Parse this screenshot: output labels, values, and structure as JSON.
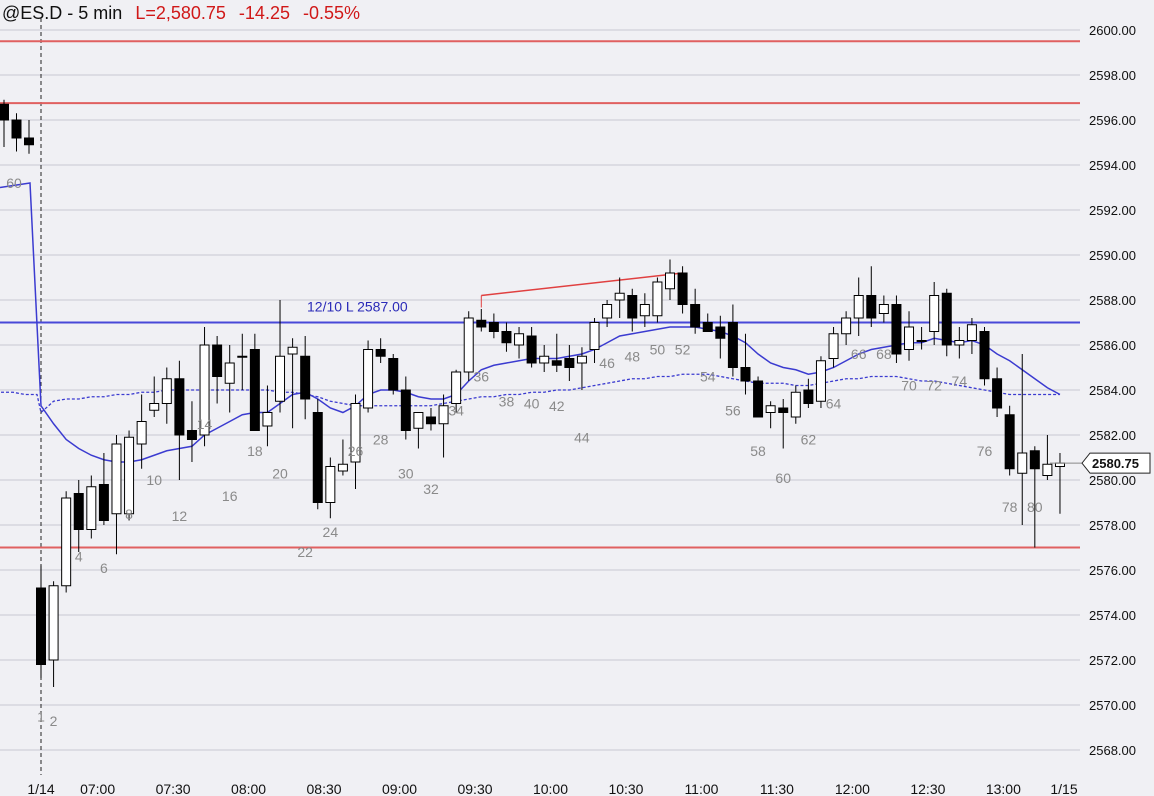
{
  "header": {
    "symbol": "@ES.D - 5 min",
    "last": "L=2,580.75",
    "change": "-14.25",
    "percent": "-0.55%"
  },
  "chart_data": {
    "type": "candlestick",
    "ylim": [
      2567,
      2601
    ],
    "yticks": [
      "2600.00",
      "2598.00",
      "2596.00",
      "2594.00",
      "2592.00",
      "2590.00",
      "2588.00",
      "2586.00",
      "2584.00",
      "2582.00",
      "2580.00",
      "2578.00",
      "2576.00",
      "2574.00",
      "2572.00",
      "2570.00",
      "2568.00"
    ],
    "xticks": [
      "1/14",
      "07:00",
      "07:30",
      "08:00",
      "08:30",
      "09:00",
      "09:30",
      "10:00",
      "10:30",
      "11:00",
      "11:30",
      "12:00",
      "12:30",
      "13:00",
      "1/15"
    ],
    "last_price_label": "2580.75",
    "last_price": 2580.75,
    "session_divider_label": "1/14",
    "colors": {
      "background": "#f0f0f4",
      "grid": "#c9c9d2",
      "level": "#e06060",
      "ema": "#3b3bd0",
      "bull": "#ffffff",
      "bear": "#000000",
      "text_gray": "#8a8a8a",
      "text_red": "#c01818",
      "text_blue": "#1e88e5"
    },
    "red_levels": [
      2599.5,
      2596.75,
      2577.0
    ],
    "blue_level": {
      "value": 2587.0,
      "label": "12/10 L 2587.00"
    },
    "trendline": {
      "from_bar": 36,
      "y1": 2588.2,
      "to_bar": 52,
      "y2": 2589.2
    },
    "prev_bars": [
      {
        "o": 2596.7,
        "h": 2596.9,
        "l": 2594.8,
        "c": 2596.0
      },
      {
        "o": 2596.0,
        "h": 2596.3,
        "l": 2594.6,
        "c": 2595.2
      },
      {
        "o": 2595.2,
        "h": 2596.0,
        "l": 2594.5,
        "c": 2594.9
      }
    ],
    "bars": [
      {
        "o": 2575.2,
        "h": 2576.2,
        "l": 2571.2,
        "c": 2571.8
      },
      {
        "o": 2572.0,
        "h": 2575.5,
        "l": 2570.8,
        "c": 2575.3
      },
      {
        "o": 2575.3,
        "h": 2579.5,
        "l": 2575.0,
        "c": 2579.2
      },
      {
        "o": 2579.4,
        "h": 2580.0,
        "l": 2576.8,
        "c": 2577.8
      },
      {
        "o": 2577.8,
        "h": 2580.2,
        "l": 2577.4,
        "c": 2579.7
      },
      {
        "o": 2579.8,
        "h": 2581.2,
        "l": 2578.0,
        "c": 2578.2
      },
      {
        "o": 2578.5,
        "h": 2582.0,
        "l": 2576.7,
        "c": 2581.6
      },
      {
        "o": 2578.5,
        "h": 2582.2,
        "l": 2578.2,
        "c": 2581.9
      },
      {
        "o": 2581.6,
        "h": 2583.8,
        "l": 2580.5,
        "c": 2582.6
      },
      {
        "o": 2583.1,
        "h": 2584.6,
        "l": 2582.8,
        "c": 2583.4
      },
      {
        "o": 2583.4,
        "h": 2585.0,
        "l": 2582.5,
        "c": 2584.5
      },
      {
        "o": 2584.5,
        "h": 2585.3,
        "l": 2580.0,
        "c": 2582.0
      },
      {
        "o": 2582.2,
        "h": 2583.5,
        "l": 2580.8,
        "c": 2581.8
      },
      {
        "o": 2582.0,
        "h": 2586.8,
        "l": 2581.5,
        "c": 2586.0
      },
      {
        "o": 2586.0,
        "h": 2586.4,
        "l": 2583.4,
        "c": 2584.6
      },
      {
        "o": 2584.3,
        "h": 2586.0,
        "l": 2583.0,
        "c": 2585.2
      },
      {
        "o": 2585.5,
        "h": 2586.5,
        "l": 2584.0,
        "c": 2585.5
      },
      {
        "o": 2585.8,
        "h": 2586.5,
        "l": 2582.2,
        "c": 2582.2
      },
      {
        "o": 2582.4,
        "h": 2584.2,
        "l": 2581.5,
        "c": 2583.0
      },
      {
        "o": 2583.5,
        "h": 2588.0,
        "l": 2583.0,
        "c": 2585.5
      },
      {
        "o": 2585.6,
        "h": 2586.3,
        "l": 2582.3,
        "c": 2585.9
      },
      {
        "o": 2585.5,
        "h": 2586.4,
        "l": 2582.7,
        "c": 2583.6
      },
      {
        "o": 2583.0,
        "h": 2583.6,
        "l": 2578.7,
        "c": 2579.0
      },
      {
        "o": 2579.0,
        "h": 2581.0,
        "l": 2578.3,
        "c": 2580.6
      },
      {
        "o": 2580.4,
        "h": 2581.8,
        "l": 2580.2,
        "c": 2580.7
      },
      {
        "o": 2580.8,
        "h": 2583.8,
        "l": 2579.6,
        "c": 2583.4
      },
      {
        "o": 2583.2,
        "h": 2586.2,
        "l": 2583.0,
        "c": 2585.8
      },
      {
        "o": 2585.8,
        "h": 2586.3,
        "l": 2585.2,
        "c": 2585.5
      },
      {
        "o": 2585.4,
        "h": 2585.6,
        "l": 2583.8,
        "c": 2584.0
      },
      {
        "o": 2584.0,
        "h": 2584.6,
        "l": 2581.8,
        "c": 2582.2
      },
      {
        "o": 2582.3,
        "h": 2583.0,
        "l": 2581.4,
        "c": 2583.0
      },
      {
        "o": 2582.8,
        "h": 2583.2,
        "l": 2582.2,
        "c": 2582.5
      },
      {
        "o": 2582.5,
        "h": 2583.8,
        "l": 2581.0,
        "c": 2583.3
      },
      {
        "o": 2583.4,
        "h": 2584.9,
        "l": 2583.0,
        "c": 2584.8
      },
      {
        "o": 2584.8,
        "h": 2587.5,
        "l": 2584.4,
        "c": 2587.2
      },
      {
        "o": 2587.1,
        "h": 2587.6,
        "l": 2586.6,
        "c": 2586.8
      },
      {
        "o": 2587.0,
        "h": 2587.4,
        "l": 2586.3,
        "c": 2586.6
      },
      {
        "o": 2586.6,
        "h": 2587.0,
        "l": 2585.7,
        "c": 2586.1
      },
      {
        "o": 2586.0,
        "h": 2586.8,
        "l": 2585.4,
        "c": 2586.5
      },
      {
        "o": 2586.4,
        "h": 2586.8,
        "l": 2585.0,
        "c": 2585.2
      },
      {
        "o": 2585.2,
        "h": 2586.0,
        "l": 2584.8,
        "c": 2585.5
      },
      {
        "o": 2585.3,
        "h": 2586.5,
        "l": 2584.8,
        "c": 2585.1
      },
      {
        "o": 2585.4,
        "h": 2586.0,
        "l": 2584.4,
        "c": 2585.0
      },
      {
        "o": 2585.2,
        "h": 2585.9,
        "l": 2584.0,
        "c": 2585.5
      },
      {
        "o": 2585.8,
        "h": 2587.2,
        "l": 2585.2,
        "c": 2587.0
      },
      {
        "o": 2587.2,
        "h": 2588.0,
        "l": 2586.8,
        "c": 2587.8
      },
      {
        "o": 2588.0,
        "h": 2589.0,
        "l": 2587.2,
        "c": 2588.3
      },
      {
        "o": 2588.2,
        "h": 2588.5,
        "l": 2586.6,
        "c": 2587.2
      },
      {
        "o": 2587.3,
        "h": 2588.3,
        "l": 2586.8,
        "c": 2587.8
      },
      {
        "o": 2587.3,
        "h": 2589.0,
        "l": 2587.0,
        "c": 2588.8
      },
      {
        "o": 2588.5,
        "h": 2589.8,
        "l": 2588.0,
        "c": 2589.2
      },
      {
        "o": 2589.2,
        "h": 2589.5,
        "l": 2587.4,
        "c": 2587.8
      },
      {
        "o": 2587.8,
        "h": 2588.5,
        "l": 2586.5,
        "c": 2586.8
      },
      {
        "o": 2587.0,
        "h": 2587.4,
        "l": 2586.6,
        "c": 2586.6
      },
      {
        "o": 2586.8,
        "h": 2587.3,
        "l": 2585.4,
        "c": 2586.3
      },
      {
        "o": 2587.0,
        "h": 2587.8,
        "l": 2584.6,
        "c": 2585.0
      },
      {
        "o": 2585.0,
        "h": 2586.5,
        "l": 2583.8,
        "c": 2584.4
      },
      {
        "o": 2584.4,
        "h": 2584.6,
        "l": 2582.8,
        "c": 2582.8
      },
      {
        "o": 2583.0,
        "h": 2583.5,
        "l": 2582.3,
        "c": 2583.3
      },
      {
        "o": 2583.2,
        "h": 2583.6,
        "l": 2581.4,
        "c": 2583.0
      },
      {
        "o": 2582.8,
        "h": 2584.2,
        "l": 2582.5,
        "c": 2583.9
      },
      {
        "o": 2584.0,
        "h": 2584.5,
        "l": 2583.2,
        "c": 2583.4
      },
      {
        "o": 2583.5,
        "h": 2585.5,
        "l": 2583.2,
        "c": 2585.3
      },
      {
        "o": 2585.4,
        "h": 2586.8,
        "l": 2585.0,
        "c": 2586.5
      },
      {
        "o": 2586.5,
        "h": 2587.5,
        "l": 2586.0,
        "c": 2587.2
      },
      {
        "o": 2587.2,
        "h": 2589.0,
        "l": 2586.4,
        "c": 2588.2
      },
      {
        "o": 2588.2,
        "h": 2589.5,
        "l": 2586.8,
        "c": 2587.2
      },
      {
        "o": 2587.4,
        "h": 2588.2,
        "l": 2587.0,
        "c": 2587.8
      },
      {
        "o": 2587.8,
        "h": 2588.2,
        "l": 2585.2,
        "c": 2585.6
      },
      {
        "o": 2585.8,
        "h": 2587.5,
        "l": 2585.3,
        "c": 2586.8
      },
      {
        "o": 2586.2,
        "h": 2586.8,
        "l": 2585.8,
        "c": 2586.2
      },
      {
        "o": 2586.6,
        "h": 2588.8,
        "l": 2586.0,
        "c": 2588.2
      },
      {
        "o": 2588.3,
        "h": 2588.5,
        "l": 2585.5,
        "c": 2586.0
      },
      {
        "o": 2586.0,
        "h": 2586.8,
        "l": 2585.4,
        "c": 2586.2
      },
      {
        "o": 2586.2,
        "h": 2587.2,
        "l": 2585.6,
        "c": 2586.9
      },
      {
        "o": 2586.6,
        "h": 2586.8,
        "l": 2584.2,
        "c": 2584.5
      },
      {
        "o": 2584.5,
        "h": 2585.0,
        "l": 2582.8,
        "c": 2583.2
      },
      {
        "o": 2582.9,
        "h": 2583.3,
        "l": 2580.2,
        "c": 2580.5
      },
      {
        "o": 2580.3,
        "h": 2585.6,
        "l": 2578.0,
        "c": 2581.2
      },
      {
        "o": 2581.3,
        "h": 2581.5,
        "l": 2577.0,
        "c": 2580.5
      },
      {
        "o": 2580.2,
        "h": 2582.0,
        "l": 2580.0,
        "c": 2580.7
      },
      {
        "o": 2580.6,
        "h": 2581.2,
        "l": 2578.5,
        "c": 2580.75
      }
    ],
    "ema": [
      2583.3,
      2582.5,
      2581.8,
      2581.4,
      2581.1,
      2580.9,
      2580.8,
      2580.8,
      2580.9,
      2581.1,
      2581.3,
      2581.4,
      2581.5,
      2582.0,
      2582.3,
      2582.6,
      2582.9,
      2583.0,
      2583.0,
      2583.4,
      2583.8,
      2583.9,
      2583.6,
      2583.2,
      2583.0,
      2583.3,
      2583.8,
      2584.0,
      2584.0,
      2583.9,
      2583.7,
      2583.6,
      2583.6,
      2583.8,
      2584.4,
      2584.9,
      2585.1,
      2585.2,
      2585.3,
      2585.4,
      2585.4,
      2585.4,
      2585.5,
      2585.6,
      2585.8,
      2586.1,
      2586.4,
      2586.5,
      2586.6,
      2586.7,
      2586.8,
      2586.8,
      2586.8,
      2586.7,
      2586.6,
      2586.4,
      2586.1,
      2585.6,
      2585.2,
      2585.0,
      2584.9,
      2584.7,
      2584.8,
      2585.0,
      2585.3,
      2585.6,
      2585.8,
      2585.9,
      2586.0,
      2586.1,
      2586.1,
      2586.3,
      2586.2,
      2586.1,
      2586.2,
      2586.0,
      2585.6,
      2585.3,
      2584.9,
      2584.5,
      2584.1,
      2583.8
    ],
    "ema_start": 2593.2,
    "ma_dashed": [
      2583.0,
      2583.5,
      2583.6,
      2583.6,
      2583.7,
      2583.7,
      2583.8,
      2583.8,
      2583.9,
      2583.9,
      2584.0,
      2584.0,
      2584.0,
      2584.0,
      2584.0,
      2584.0,
      2584.0,
      2584.0,
      2584.0,
      2583.9,
      2583.9,
      2583.8,
      2583.7,
      2583.5,
      2583.4,
      2583.3,
      2583.3,
      2583.3,
      2583.3,
      2583.3,
      2583.3,
      2583.3,
      2583.4,
      2583.5,
      2583.6,
      2583.7,
      2583.7,
      2583.8,
      2583.8,
      2583.9,
      2583.9,
      2584.0,
      2584.0,
      2584.1,
      2584.2,
      2584.3,
      2584.4,
      2584.5,
      2584.5,
      2584.6,
      2584.6,
      2584.7,
      2584.7,
      2584.7,
      2584.6,
      2584.5,
      2584.4,
      2584.3,
      2584.3,
      2584.3,
      2584.2,
      2584.2,
      2584.3,
      2584.4,
      2584.5,
      2584.5,
      2584.6,
      2584.6,
      2584.6,
      2584.5,
      2584.4,
      2584.4,
      2584.3,
      2584.2,
      2584.1,
      2584.0,
      2583.9,
      2583.8,
      2583.8,
      2583.8,
      2583.8,
      2583.8
    ],
    "ma_dashed_pre": [
      2583.9,
      2583.9,
      2583.8,
      2583.8
    ],
    "bar_labels": [
      {
        "bar": 1,
        "text": "1",
        "y": 2569.5,
        "color": "gray"
      },
      {
        "bar": 2,
        "text": "2",
        "y": 2569.3,
        "color": "gray"
      },
      {
        "bar": 4,
        "text": "4",
        "y": 2576.6,
        "color": "gray"
      },
      {
        "bar": 6,
        "text": "6",
        "y": 2576.1,
        "color": "gray"
      },
      {
        "bar": 8,
        "text": "8",
        "y": 2578.5,
        "color": "gray"
      },
      {
        "bar": 10,
        "text": "10",
        "y": 2580.0,
        "color": "gray"
      },
      {
        "bar": 12,
        "text": "12",
        "y": 2578.4,
        "color": "red"
      },
      {
        "bar": 14,
        "text": "14",
        "y": 2582.5,
        "color": "gray"
      },
      {
        "bar": 16,
        "text": "16",
        "y": 2579.3,
        "color": "gray"
      },
      {
        "bar": 18,
        "text": "18",
        "y": 2581.3,
        "color": "blue"
      },
      {
        "bar": 20,
        "text": "20",
        "y": 2580.3,
        "color": "gray"
      },
      {
        "bar": 22,
        "text": "22",
        "y": 2576.8,
        "color": "gray"
      },
      {
        "bar": 24,
        "text": "24",
        "y": 2577.7,
        "color": "red"
      },
      {
        "bar": 26,
        "text": "26",
        "y": 2581.3,
        "color": "gray"
      },
      {
        "bar": 28,
        "text": "28",
        "y": 2581.8,
        "color": "gray"
      },
      {
        "bar": 30,
        "text": "30",
        "y": 2580.3,
        "color": "gray"
      },
      {
        "bar": 32,
        "text": "32",
        "y": 2579.6,
        "color": "gray"
      },
      {
        "bar": 34,
        "text": "34",
        "y": 2583.1,
        "color": "gray"
      },
      {
        "bar": 36,
        "text": "36",
        "y": 2584.6,
        "color": "red"
      },
      {
        "bar": 38,
        "text": "38",
        "y": 2583.5,
        "color": "gray"
      },
      {
        "bar": 40,
        "text": "40",
        "y": 2583.4,
        "color": "gray"
      },
      {
        "bar": 42,
        "text": "42",
        "y": 2583.3,
        "color": "gray"
      },
      {
        "bar": 44,
        "text": "44",
        "y": 2581.9,
        "color": "gray"
      },
      {
        "bar": 46,
        "text": "46",
        "y": 2585.2,
        "color": "gray"
      },
      {
        "bar": 48,
        "text": "48",
        "y": 2585.5,
        "color": "red"
      },
      {
        "bar": 50,
        "text": "50",
        "y": 2585.8,
        "color": "gray"
      },
      {
        "bar": 52,
        "text": "52",
        "y": 2585.8,
        "color": "gray"
      },
      {
        "bar": 54,
        "text": "54",
        "y": 2584.6,
        "color": "gray"
      },
      {
        "bar": 56,
        "text": "56",
        "y": 2583.1,
        "color": "gray"
      },
      {
        "bar": 58,
        "text": "58",
        "y": 2581.3,
        "color": "gray"
      },
      {
        "bar": 60,
        "text": "60",
        "y": 2580.1,
        "color": "red"
      },
      {
        "bar": 62,
        "text": "62",
        "y": 2581.8,
        "color": "gray"
      },
      {
        "bar": 64,
        "text": "64",
        "y": 2583.4,
        "color": "gray"
      },
      {
        "bar": 66,
        "text": "66",
        "y": 2585.6,
        "color": "gray"
      },
      {
        "bar": 68,
        "text": "68",
        "y": 2585.6,
        "color": "gray"
      },
      {
        "bar": 70,
        "text": "70",
        "y": 2584.2,
        "color": "gray"
      },
      {
        "bar": 72,
        "text": "72",
        "y": 2584.2,
        "color": "red"
      },
      {
        "bar": 74,
        "text": "74",
        "y": 2584.4,
        "color": "gray"
      },
      {
        "bar": 76,
        "text": "76",
        "y": 2581.3,
        "color": "gray"
      },
      {
        "bar": 78,
        "text": "78",
        "y": 2578.8,
        "color": "gray"
      },
      {
        "bar": 80,
        "text": "80",
        "y": 2578.8,
        "color": "gray"
      },
      {
        "bar": -1,
        "text": "60",
        "y": 2593.2,
        "color": "gray"
      }
    ]
  }
}
